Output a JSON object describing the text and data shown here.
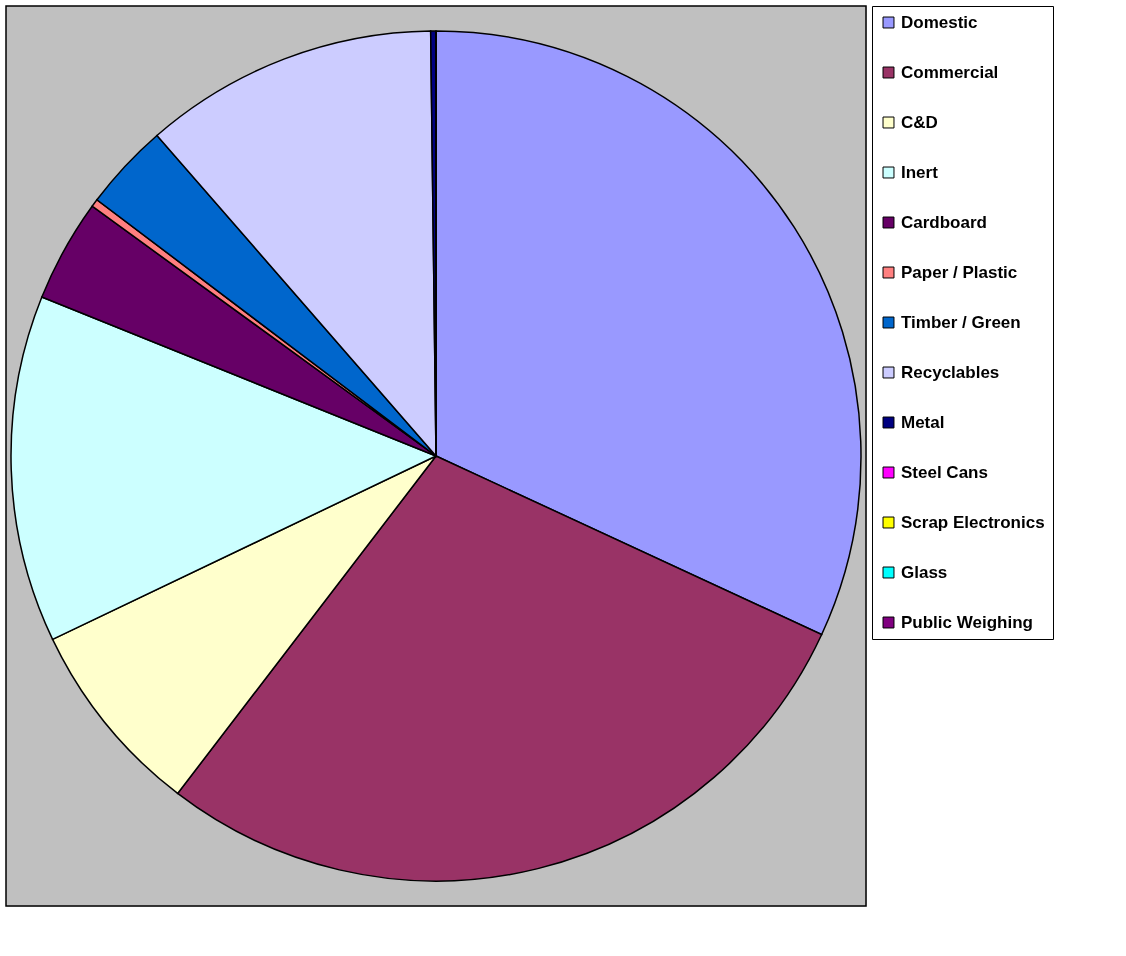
{
  "chart_data": {
    "type": "pie",
    "categories": [
      "Domestic",
      "Commercial",
      "C&D",
      "Inert",
      "Cardboard",
      "Paper / Plastic",
      "Timber / Green",
      "Recyclables",
      "Metal",
      "Steel Cans",
      "Scrap Electronics",
      "Glass",
      "Public Weighing"
    ],
    "values": [
      31.9,
      28.5,
      7.5,
      13.2,
      3.9,
      0.3,
      3.3,
      11.2,
      0.2,
      0,
      0,
      0,
      0
    ],
    "colors": [
      "#9999ff",
      "#993366",
      "#ffffcc",
      "#ccffff",
      "#660066",
      "#ff8080",
      "#0066cc",
      "#ccccff",
      "#000080",
      "#ff00ff",
      "#ffff00",
      "#00ffff",
      "#800080"
    ],
    "legend": "right"
  }
}
